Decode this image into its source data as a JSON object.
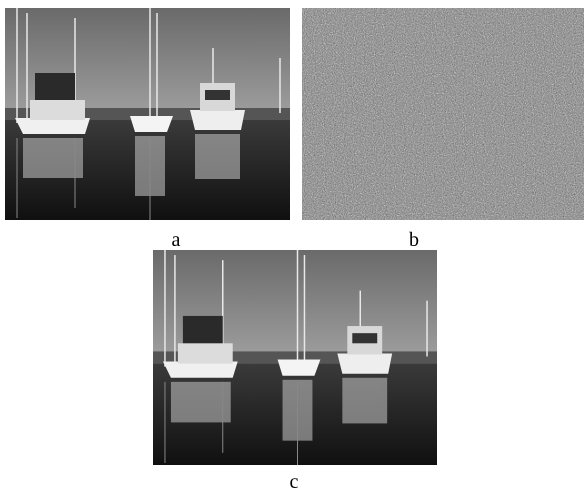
{
  "figure": {
    "panels": [
      {
        "label": "a"
      },
      {
        "label": "b"
      },
      {
        "label": "c"
      }
    ]
  }
}
